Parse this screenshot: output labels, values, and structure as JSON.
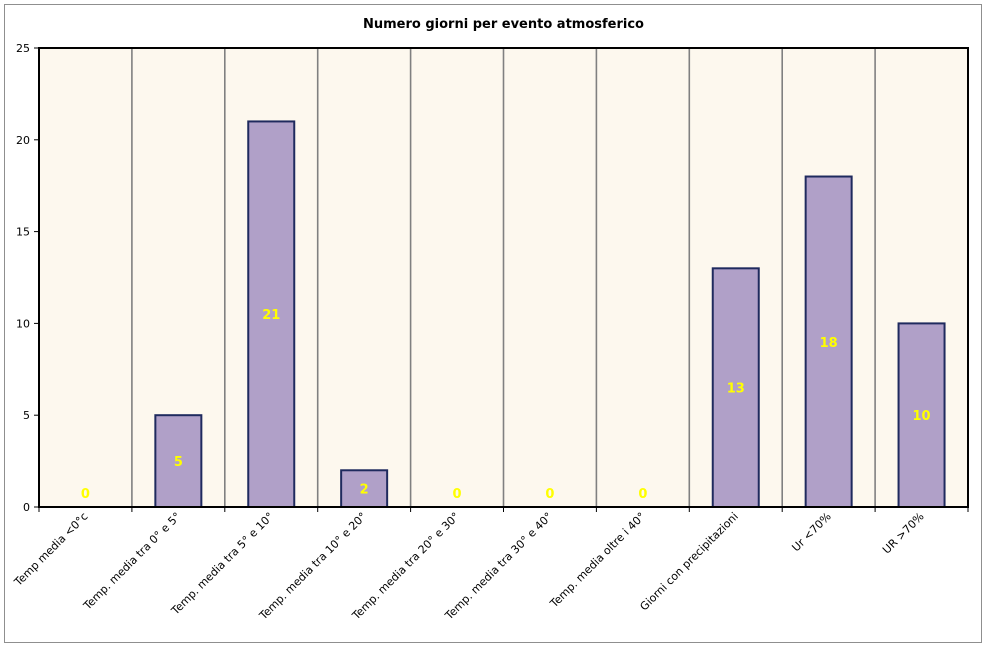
{
  "chart_data": {
    "type": "bar",
    "title": "Numero giorni per evento atmosferico",
    "xlabel": "",
    "ylabel": "",
    "ylim": [
      0,
      25
    ],
    "yticks": [
      0,
      5,
      10,
      15,
      20,
      25
    ],
    "categories": [
      "Temp media <0°c",
      "Temp. media tra 0° e 5°",
      "Temp. media tra 5° e 10°",
      "Temp. media tra 10° e 20°",
      "Temp. media tra 20° e 30°",
      "Temp. media tra 30° e 40°",
      "Temp. media oltre i 40°",
      "Giorni con precipitazioni",
      "Ur <70%",
      "UR >70%"
    ],
    "values": [
      0,
      5,
      21,
      2,
      0,
      0,
      0,
      13,
      18,
      10
    ],
    "data_labels": [
      "0",
      "5",
      "21",
      "2",
      "0",
      "0",
      "0",
      "13",
      "18",
      "10"
    ],
    "grid": true,
    "legend": "none"
  },
  "colors": {
    "plot_background": "#fdf8ee",
    "bar_fill": "#b0a0c8",
    "bar_stroke": "#1f2a5e",
    "value_label": "#ffff00",
    "grid_line": "#808080",
    "axis_line": "#000000"
  }
}
